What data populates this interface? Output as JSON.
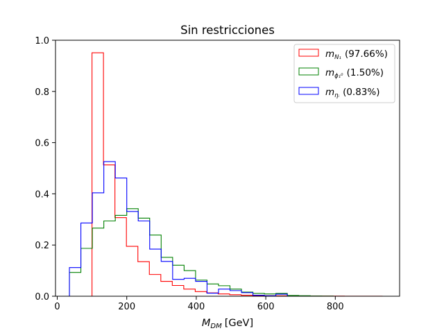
{
  "chart_data": {
    "type": "histogram",
    "title": "Sin restricciones",
    "xlabel_main": "M",
    "xlabel_sub": "DM",
    "xlabel_unit": "[GeV]",
    "ylabel": "",
    "xlim": [
      -5,
      985
    ],
    "ylim": [
      0,
      1.0
    ],
    "xticks": [
      0,
      200,
      400,
      600,
      800
    ],
    "yticks": [
      0.0,
      0.2,
      0.4,
      0.6,
      0.8,
      1.0
    ],
    "xtick_labels": [
      "0",
      "200",
      "400",
      "600",
      "800"
    ],
    "ytick_labels": [
      "0.0",
      "0.2",
      "0.4",
      "0.6",
      "0.8",
      "1.0"
    ],
    "grid": false,
    "legend_placement": "top-right",
    "series": [
      {
        "label_main": "m",
        "label_sub": "N₁",
        "label_pct": "(97.66%)",
        "color": "#ff0000",
        "edges": [
          100,
          133,
          166,
          199,
          232,
          265,
          298,
          331,
          364,
          397,
          430,
          463,
          496,
          529,
          562,
          595,
          628,
          661,
          694,
          727,
          760,
          793,
          826,
          859,
          892,
          935
        ],
        "values": [
          0.951,
          0.513,
          0.307,
          0.195,
          0.135,
          0.085,
          0.058,
          0.042,
          0.028,
          0.018,
          0.013,
          0.009,
          0.006,
          0.004,
          0.003,
          0.002,
          0.0015,
          0.001,
          0.0008,
          0.0006,
          0.0005,
          0.0004,
          0.0003,
          0.0002,
          0.0001
        ]
      },
      {
        "label_main": "m",
        "label_sub": "ϕ₁⁰",
        "label_pct": "(1.50%)",
        "color": "#008000",
        "edges": [
          35,
          68,
          101,
          134,
          167,
          200,
          233,
          266,
          299,
          332,
          365,
          398,
          431,
          464,
          497,
          530,
          563,
          596,
          629,
          662,
          695,
          728,
          761,
          794
        ],
        "values": [
          0.093,
          0.187,
          0.266,
          0.294,
          0.316,
          0.342,
          0.305,
          0.239,
          0.152,
          0.121,
          0.1,
          0.063,
          0.048,
          0.041,
          0.028,
          0.016,
          0.011,
          0.009,
          0.011,
          0.003,
          0.002,
          0.001,
          0.0005
        ]
      },
      {
        "label_main": "m",
        "label_sub": "ηᵢ",
        "label_pct": "(0.83%)",
        "color": "#0000ff",
        "edges": [
          35,
          68,
          101,
          134,
          167,
          200,
          233,
          266,
          299,
          332,
          365,
          398,
          431,
          464,
          497,
          530,
          563,
          596,
          629,
          662
        ],
        "values": [
          0.112,
          0.286,
          0.404,
          0.526,
          0.462,
          0.331,
          0.294,
          0.184,
          0.136,
          0.066,
          0.07,
          0.058,
          0.012,
          0.028,
          0.022,
          0.014,
          0.004,
          0.002,
          0.008
        ]
      }
    ]
  }
}
